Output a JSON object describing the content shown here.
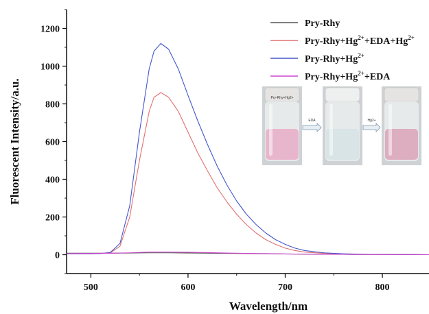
{
  "chart_data": {
    "type": "line",
    "xlabel": "Wavelength/nm",
    "ylabel": "Fluorescent Intensity/a.u.",
    "xlim": [
      475,
      848
    ],
    "ylim": [
      -100,
      1300
    ],
    "x_ticks": [
      500,
      600,
      700,
      800
    ],
    "y_ticks": [
      0,
      200,
      400,
      600,
      800,
      1000,
      1200
    ],
    "legend_position": "top-right",
    "grid": false,
    "series": [
      {
        "name": "Pry-Rhy",
        "color": "#555555",
        "x": [
          475,
          500,
          520,
          540,
          560,
          580,
          600,
          620,
          640,
          660,
          680,
          700,
          720,
          740,
          760,
          780,
          800,
          820,
          848
        ],
        "y": [
          8,
          8,
          8,
          9,
          10,
          10,
          9,
          8,
          7,
          6,
          5,
          4,
          3,
          2,
          2,
          1,
          1,
          1,
          0
        ]
      },
      {
        "name": "Pry-Rhy+Hg2++EDA+Hg2+",
        "color": "#e07070",
        "x": [
          475,
          500,
          510,
          520,
          530,
          540,
          550,
          560,
          565,
          572,
          580,
          590,
          600,
          610,
          620,
          630,
          640,
          650,
          660,
          670,
          680,
          690,
          700,
          710,
          720,
          740,
          760,
          780,
          800,
          848
        ],
        "y": [
          5,
          5,
          6,
          10,
          45,
          200,
          500,
          760,
          835,
          860,
          835,
          760,
          650,
          540,
          445,
          355,
          280,
          215,
          160,
          115,
          80,
          55,
          35,
          22,
          14,
          7,
          4,
          2,
          1,
          0
        ]
      },
      {
        "name": "Pry-Rhy+Hg2+",
        "color": "#4455cc",
        "x": [
          475,
          500,
          510,
          520,
          530,
          540,
          550,
          560,
          565,
          572,
          580,
          590,
          600,
          610,
          620,
          630,
          640,
          650,
          660,
          670,
          680,
          690,
          700,
          710,
          720,
          740,
          760,
          780,
          800,
          848
        ],
        "y": [
          5,
          5,
          6,
          12,
          60,
          260,
          650,
          985,
          1080,
          1120,
          1090,
          985,
          845,
          710,
          585,
          470,
          370,
          285,
          215,
          160,
          115,
          80,
          55,
          35,
          22,
          10,
          5,
          2,
          1,
          0
        ]
      },
      {
        "name": "Pry-Rhy+Hg2++EDA",
        "color": "#cc44cc",
        "x": [
          475,
          500,
          520,
          540,
          560,
          580,
          600,
          620,
          640,
          660,
          680,
          700,
          720,
          740,
          760,
          780,
          800,
          820,
          848
        ],
        "y": [
          6,
          7,
          8,
          10,
          14,
          14,
          13,
          11,
          9,
          7,
          6,
          4,
          3,
          2,
          2,
          1,
          1,
          1,
          0
        ]
      }
    ],
    "inset": {
      "vials": [
        {
          "label": "Pry-Rhy+Hg2+",
          "color": "#e8b6cc"
        },
        {
          "label": "",
          "color": "#d8e4e6"
        },
        {
          "label": "",
          "color": "#ddaec0"
        }
      ],
      "arrows": [
        "EDA",
        "Hg2+"
      ]
    }
  },
  "legend": [
    {
      "base": "Pry-Rhy",
      "parts": [
        [
          "Pry-Rhy",
          ""
        ]
      ]
    },
    {
      "base": "Pry-Rhy+Hg2++EDA+Hg2+",
      "parts": [
        [
          "Pry-Rhy+Hg",
          ""
        ],
        [
          "2+",
          "sup"
        ],
        [
          "+EDA+Hg",
          ""
        ],
        [
          "2+",
          "sup"
        ]
      ]
    },
    {
      "base": "Pry-Rhy+Hg2+",
      "parts": [
        [
          "Pry-Rhy+Hg",
          ""
        ],
        [
          "2+",
          "sup"
        ]
      ]
    },
    {
      "base": "Pry-Rhy+Hg2++EDA",
      "parts": [
        [
          "Pry-Rhy+Hg",
          ""
        ],
        [
          "2+",
          "sup"
        ],
        [
          "+EDA",
          ""
        ]
      ]
    }
  ]
}
